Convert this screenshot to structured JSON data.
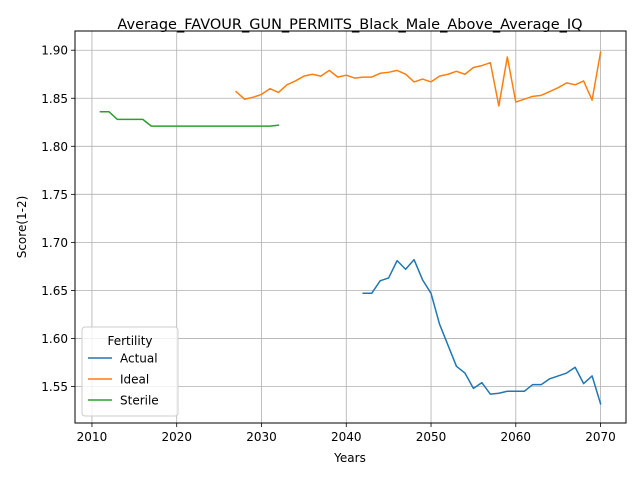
{
  "chart_data": {
    "type": "line",
    "title": "Average_FAVOUR_GUN_PERMITS_Black_Male_Above_Average_IQ",
    "xlabel": "Years",
    "ylabel": "Score(1-2)",
    "xlim": [
      2008,
      2073
    ],
    "ylim": [
      1.512,
      1.92
    ],
    "xticks": [
      2010,
      2020,
      2030,
      2040,
      2050,
      2060,
      2070
    ],
    "yticks": [
      1.55,
      1.6,
      1.65,
      1.7,
      1.75,
      1.8,
      1.85,
      1.9
    ],
    "ytick_labels": [
      "1.55",
      "1.60",
      "1.65",
      "1.70",
      "1.75",
      "1.80",
      "1.85",
      "1.90"
    ],
    "grid": true,
    "legend": {
      "title": "Fertility",
      "placement": "lower-left"
    },
    "series": [
      {
        "name": "Actual",
        "color": "#1f77b4",
        "x": [
          2042,
          2043,
          2044,
          2045,
          2046,
          2047,
          2048,
          2049,
          2050,
          2051,
          2052,
          2053,
          2054,
          2055,
          2056,
          2057,
          2058,
          2059,
          2060,
          2061,
          2062,
          2063,
          2064,
          2065,
          2066,
          2067,
          2068,
          2069,
          2070
        ],
        "y": [
          1.647,
          1.647,
          1.66,
          1.663,
          1.681,
          1.672,
          1.682,
          1.661,
          1.647,
          1.615,
          1.593,
          1.571,
          1.564,
          1.548,
          1.554,
          1.542,
          1.543,
          1.545,
          1.545,
          1.545,
          1.552,
          1.552,
          1.558,
          1.561,
          1.564,
          1.57,
          1.553,
          1.561,
          1.532
        ]
      },
      {
        "name": "Ideal",
        "color": "#ff7f0e",
        "x": [
          2027,
          2028,
          2029,
          2030,
          2031,
          2032,
          2033,
          2034,
          2035,
          2036,
          2037,
          2038,
          2039,
          2040,
          2041,
          2042,
          2043,
          2044,
          2045,
          2046,
          2047,
          2048,
          2049,
          2050,
          2051,
          2052,
          2053,
          2054,
          2055,
          2056,
          2057,
          2058,
          2059,
          2060,
          2061,
          2062,
          2063,
          2064,
          2065,
          2066,
          2067,
          2068,
          2069,
          2070
        ],
        "y": [
          1.857,
          1.849,
          1.851,
          1.854,
          1.86,
          1.856,
          1.864,
          1.868,
          1.873,
          1.875,
          1.873,
          1.879,
          1.872,
          1.874,
          1.871,
          1.872,
          1.872,
          1.876,
          1.877,
          1.879,
          1.875,
          1.867,
          1.87,
          1.867,
          1.873,
          1.875,
          1.878,
          1.875,
          1.882,
          1.884,
          1.887,
          1.842,
          1.893,
          1.846,
          1.849,
          1.852,
          1.853,
          1.857,
          1.861,
          1.866,
          1.864,
          1.868,
          1.848,
          1.898
        ]
      },
      {
        "name": "Sterile",
        "color": "#2ca02c",
        "x": [
          2011,
          2012,
          2013,
          2014,
          2015,
          2016,
          2017,
          2018,
          2019,
          2020,
          2021,
          2022,
          2023,
          2024,
          2025,
          2026,
          2027,
          2028,
          2029,
          2030,
          2031,
          2032
        ],
        "y": [
          1.836,
          1.836,
          1.828,
          1.828,
          1.828,
          1.828,
          1.821,
          1.821,
          1.821,
          1.821,
          1.821,
          1.821,
          1.821,
          1.821,
          1.821,
          1.821,
          1.821,
          1.821,
          1.821,
          1.821,
          1.821,
          1.822
        ]
      }
    ]
  }
}
